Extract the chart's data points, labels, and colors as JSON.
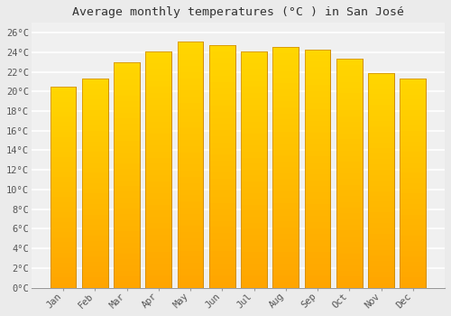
{
  "title": "Average monthly temperatures (°C ) in San José",
  "months": [
    "Jan",
    "Feb",
    "Mar",
    "Apr",
    "May",
    "Jun",
    "Jul",
    "Aug",
    "Sep",
    "Oct",
    "Nov",
    "Dec"
  ],
  "temperatures": [
    20.5,
    21.3,
    23.0,
    24.1,
    25.1,
    24.7,
    24.1,
    24.5,
    24.3,
    23.3,
    21.9,
    21.3
  ],
  "bar_color_top": "#FFD700",
  "bar_color_bottom": "#FFA500",
  "bar_edge_color": "#CC8800",
  "ylim": [
    0,
    27
  ],
  "yticks": [
    0,
    2,
    4,
    6,
    8,
    10,
    12,
    14,
    16,
    18,
    20,
    22,
    24,
    26
  ],
  "background_color": "#ebebeb",
  "plot_bg_color": "#f0f0f0",
  "grid_color": "#ffffff",
  "title_fontsize": 9.5,
  "tick_fontsize": 7.5,
  "font_family": "monospace"
}
